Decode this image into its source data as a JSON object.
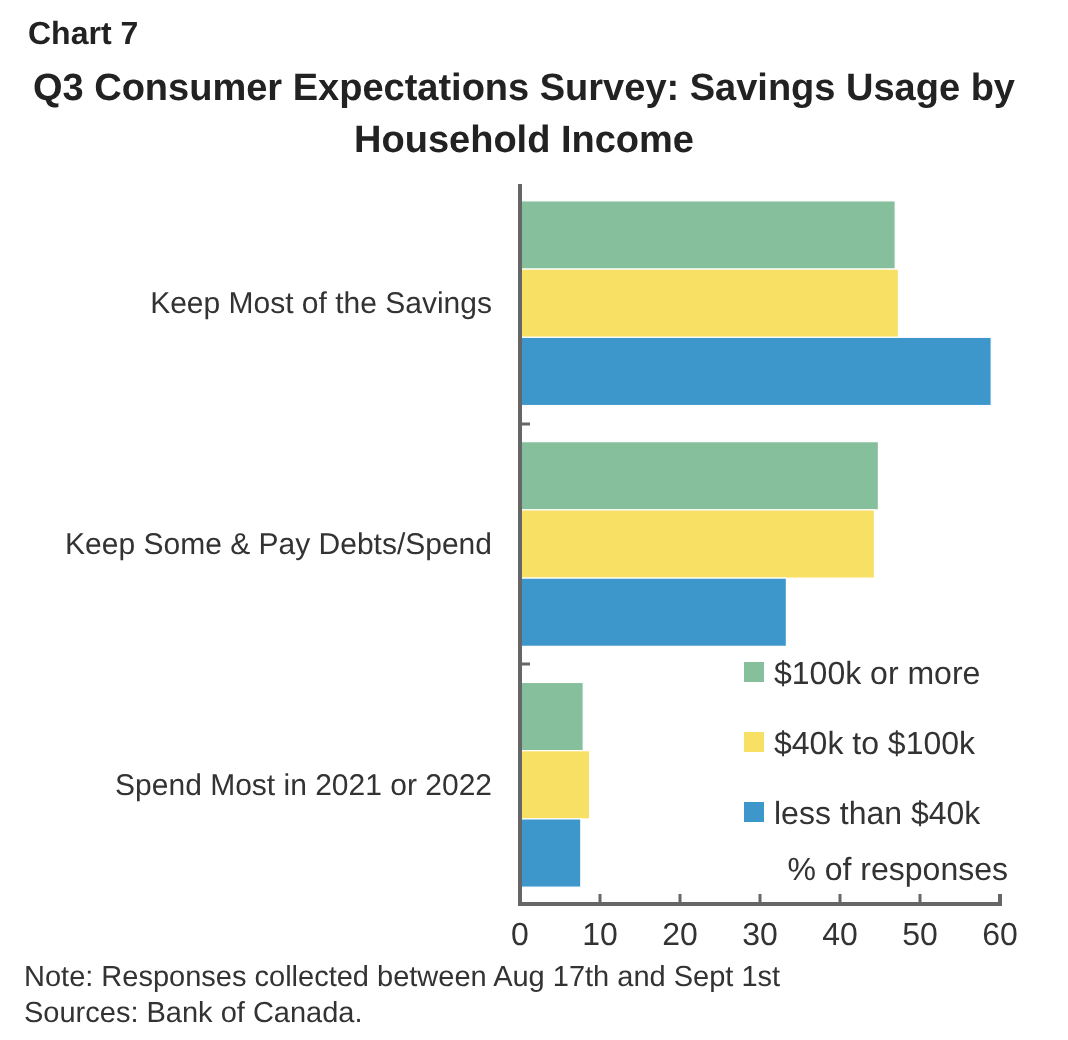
{
  "chart_data": {
    "type": "bar",
    "orientation": "horizontal",
    "subtitle": "Chart 7",
    "title": "Q3 Consumer Expectations Survey: Savings Usage by Household Income",
    "xlabel": "% of responses",
    "categories": [
      "Keep Most of the Savings",
      "Keep Some & Pay Debts/Spend",
      "Spend Most in 2021 or 2022"
    ],
    "series": [
      {
        "name": "$100k or more",
        "color": "#86bf9c",
        "values": [
          46.9,
          44.8,
          7.9
        ]
      },
      {
        "name": "$40k to $100k",
        "color": "#f8e064",
        "values": [
          47.3,
          44.3,
          8.7
        ]
      },
      {
        "name": "less than $40k",
        "color": "#3e97cb",
        "values": [
          58.9,
          33.3,
          7.6
        ]
      }
    ],
    "xlim": [
      0,
      60
    ],
    "xticks": [
      0,
      10,
      20,
      30,
      40,
      50,
      60
    ],
    "legend": "bottom right",
    "grid": false,
    "annotations": [
      "Note: Responses collected between Aug 17th and Sept 1st",
      "Sources: Bank of Canada."
    ]
  }
}
